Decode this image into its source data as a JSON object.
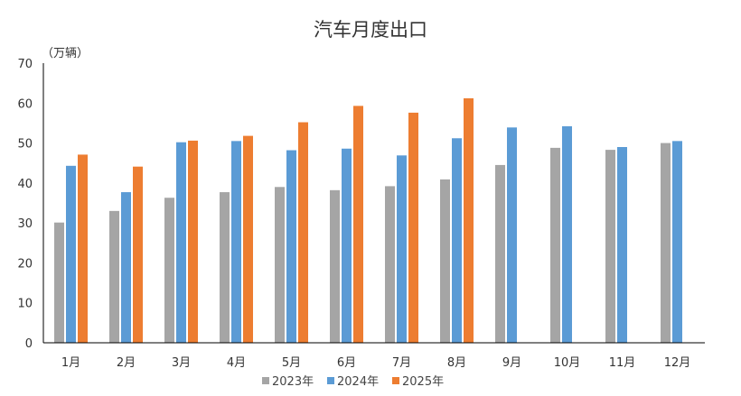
{
  "chart_data": {
    "type": "bar",
    "title": "汽车月度出口",
    "unit_label": "（万辆）",
    "ylim": [
      0,
      70
    ],
    "yticks": [
      "0",
      "10",
      "20",
      "30",
      "40",
      "50",
      "60",
      "70"
    ],
    "categories": [
      "1月",
      "2月",
      "3月",
      "4月",
      "5月",
      "6月",
      "7月",
      "8月",
      "9月",
      "10月",
      "11月",
      "12月"
    ],
    "series": [
      {
        "name": "2023年",
        "color": "#a5a5a5",
        "values": [
          30.1,
          33.0,
          36.3,
          37.7,
          39.0,
          38.2,
          39.2,
          40.9,
          44.5,
          48.8,
          48.3,
          50.0
        ]
      },
      {
        "name": "2024年",
        "color": "#5b9bd5",
        "values": [
          44.3,
          37.7,
          50.2,
          50.5,
          48.2,
          48.6,
          46.9,
          51.2,
          53.9,
          54.2,
          49.0,
          50.5
        ]
      },
      {
        "name": "2025年",
        "color": "#ed7d31",
        "values": [
          47.1,
          44.1,
          50.6,
          51.8,
          55.2,
          59.3,
          57.6,
          61.2,
          null,
          null,
          null,
          null
        ]
      }
    ],
    "legend_position": "bottom",
    "grid": false
  }
}
